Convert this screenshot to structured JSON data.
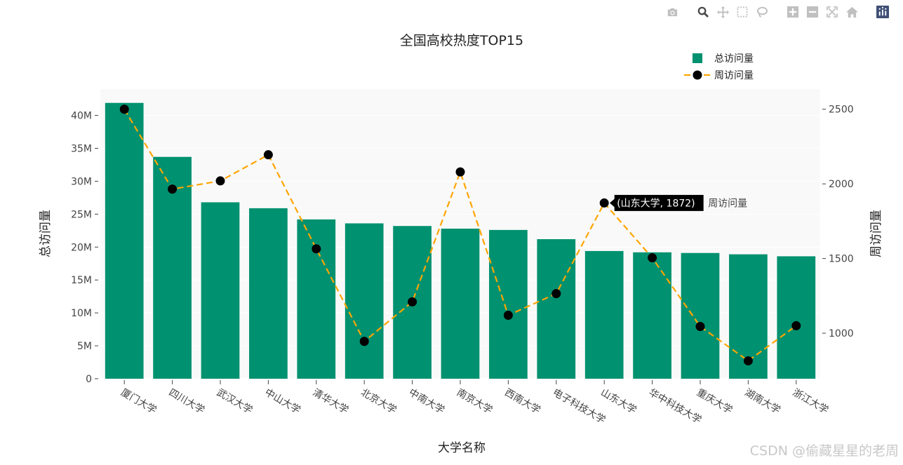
{
  "toolbar": {
    "buttons": [
      {
        "name": "camera-icon",
        "title": "Download plot as a png"
      },
      {
        "name": "zoom-icon",
        "title": "Zoom"
      },
      {
        "name": "pan-icon",
        "title": "Pan"
      },
      {
        "name": "box-select-icon",
        "title": "Box Select"
      },
      {
        "name": "lasso-select-icon",
        "title": "Lasso Select"
      },
      {
        "name": "zoom-in-icon",
        "title": "Zoom in"
      },
      {
        "name": "zoom-out-icon",
        "title": "Zoom out"
      },
      {
        "name": "autoscale-icon",
        "title": "Autoscale"
      },
      {
        "name": "reset-axes-icon",
        "title": "Reset axes"
      },
      {
        "name": "plotly-logo-icon",
        "title": "Produced with Plotly"
      }
    ]
  },
  "chart_data": {
    "type": "bar",
    "title": "全国高校热度TOP15",
    "xlabel": "大学名称",
    "ylabel": "总访问量",
    "y2label": "周访问量",
    "categories": [
      "厦门大学",
      "四川大学",
      "武汉大学",
      "中山大学",
      "清华大学",
      "北京大学",
      "中南大学",
      "南京大学",
      "西南大学",
      "电子科技大学",
      "山东大学",
      "华中科技大学",
      "重庆大学",
      "湖南大学",
      "浙江大学"
    ],
    "series": [
      {
        "name": "总访问量",
        "type": "bar",
        "axis": "y",
        "color": "#009170",
        "values": [
          41900000,
          33700000,
          26800000,
          25900000,
          24200000,
          23600000,
          23200000,
          22800000,
          22600000,
          21200000,
          19400000,
          19200000,
          19100000,
          18900000,
          18600000
        ]
      },
      {
        "name": "周访问量",
        "type": "line",
        "axis": "y2",
        "color": "#ffa500",
        "marker_color": "#000000",
        "dash": "dash",
        "values": [
          2500,
          1965,
          2020,
          2195,
          1565,
          945,
          1210,
          2080,
          1120,
          1265,
          1872,
          1505,
          1045,
          815,
          1050
        ]
      }
    ],
    "ylim": [
      0,
      44000000
    ],
    "y_ticks": [
      0,
      5000000,
      10000000,
      15000000,
      20000000,
      25000000,
      30000000,
      35000000,
      40000000
    ],
    "y_tick_labels": [
      "0",
      "5M",
      "10M",
      "15M",
      "20M",
      "25M",
      "30M",
      "35M",
      "40M"
    ],
    "y2lim": [
      695,
      2635
    ],
    "y2_ticks": [
      1000,
      1500,
      2000,
      2500
    ],
    "y2_tick_labels": [
      "1000",
      "1500",
      "2000",
      "2500"
    ],
    "legend_position": "top-right",
    "hover": {
      "category": "山东大学",
      "series": "周访问量",
      "text": "(山东大学, 1872)",
      "label": "周访问量"
    }
  },
  "watermark": "CSDN @偷藏星星的老周"
}
